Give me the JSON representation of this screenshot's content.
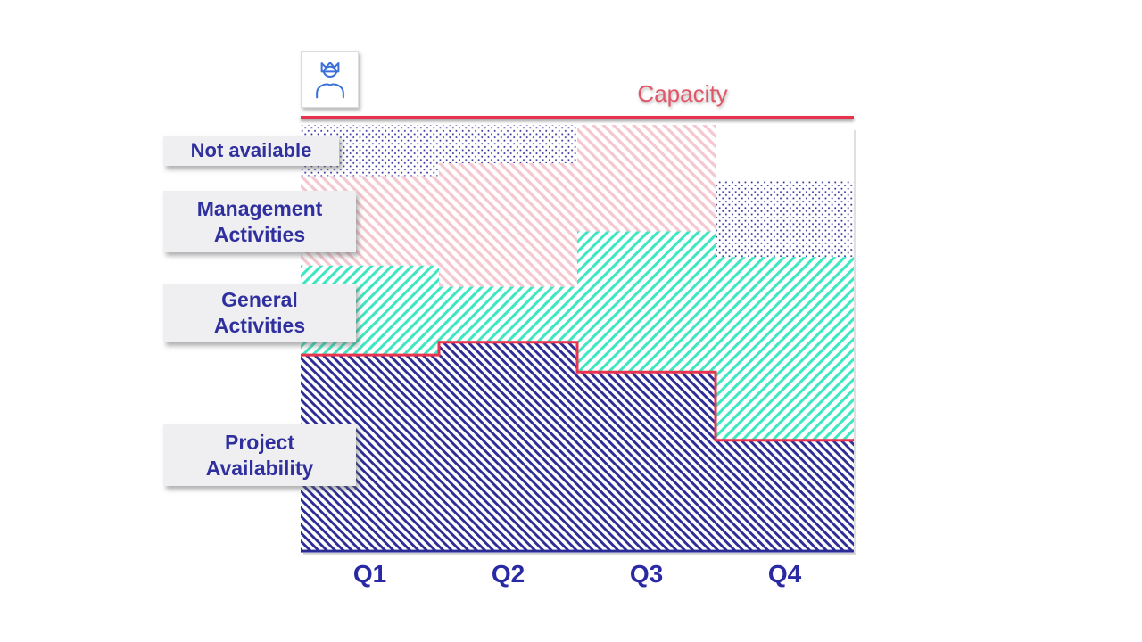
{
  "icons": {
    "profile": "person-with-crown"
  },
  "legend": {
    "items": [
      {
        "id": "not-available",
        "lines": [
          "Not available"
        ]
      },
      {
        "id": "management-activities",
        "lines": [
          "Management",
          "Activities"
        ]
      },
      {
        "id": "general-activities",
        "lines": [
          "General",
          "Activities"
        ]
      },
      {
        "id": "project-availability",
        "lines": [
          "Project",
          "Availability"
        ]
      }
    ]
  },
  "text_colors": {
    "navy": "#2f2f9e",
    "capacity_red": "#e2566a"
  },
  "chart_data": {
    "type": "area",
    "subtype": "stacked-step",
    "categories": [
      "Q1",
      "Q2",
      "Q3",
      "Q4"
    ],
    "unit": "percent_of_capacity",
    "ylim": [
      0,
      100
    ],
    "grid": false,
    "legend_position": "left",
    "axis_color": "#2b2b96",
    "series": [
      {
        "name": "Project Availability",
        "pattern": "diagonal-down",
        "color": "#2d2d96",
        "outline_color": "#e8344f",
        "values": [
          46,
          49,
          42,
          26
        ]
      },
      {
        "name": "General Activities",
        "pattern": "diagonal-up",
        "color": "#3ee6c2",
        "values": [
          21,
          13,
          33,
          43
        ]
      },
      {
        "name": "Management Activities",
        "pattern": "diagonal-down",
        "color": "#f4c8d0",
        "values": [
          21,
          29,
          25,
          0
        ]
      },
      {
        "name": "Not available",
        "pattern": "dots",
        "color": "#2b2b9a",
        "values": [
          12,
          9,
          0,
          18
        ]
      }
    ],
    "capacity_line": {
      "label": "Capacity",
      "color": "#e7324f",
      "value": 100
    }
  }
}
